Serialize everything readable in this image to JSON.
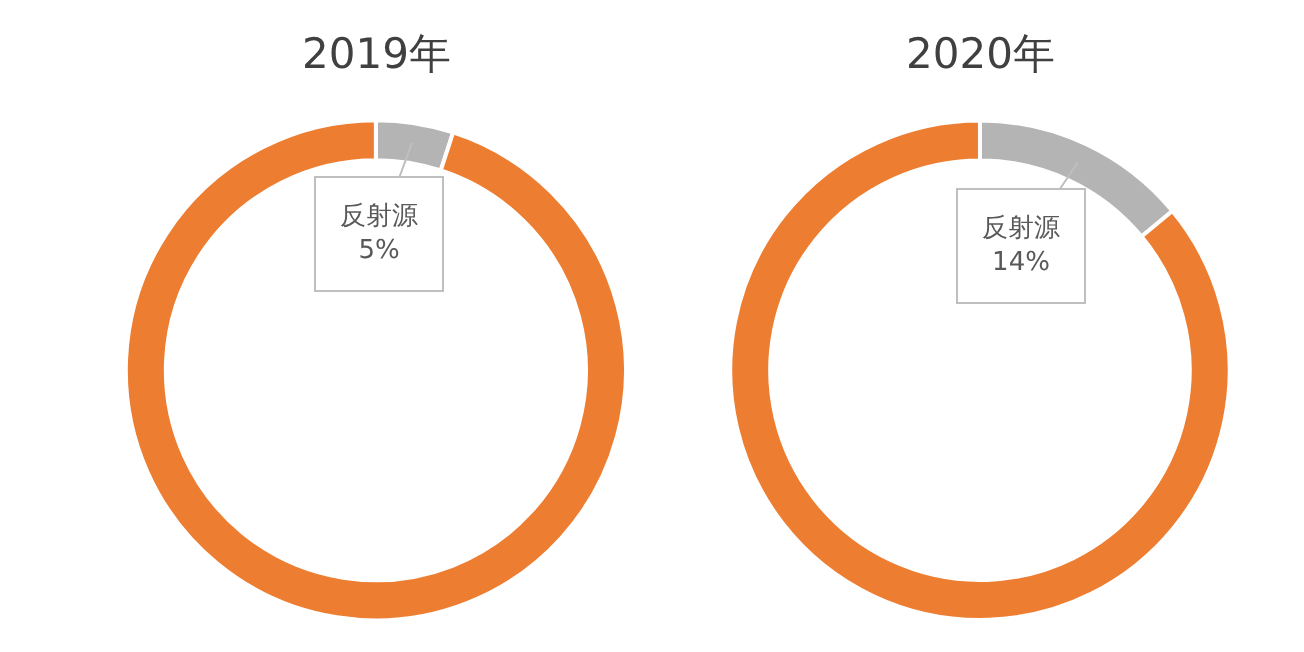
{
  "chart_data": [
    {
      "type": "donut",
      "title": "2019年",
      "categories": [
        "反射源",
        null
      ],
      "values": [
        5,
        95
      ],
      "colors": [
        "#b4b4b4",
        "#ed7d31"
      ],
      "value_labels": [
        "5%",
        null
      ]
    },
    {
      "type": "donut",
      "title": "2020年",
      "categories": [
        "反射源",
        null
      ],
      "values": [
        14,
        86
      ],
      "colors": [
        "#b4b4b4",
        "#ed7d31"
      ],
      "value_labels": [
        "14%",
        null
      ]
    }
  ]
}
